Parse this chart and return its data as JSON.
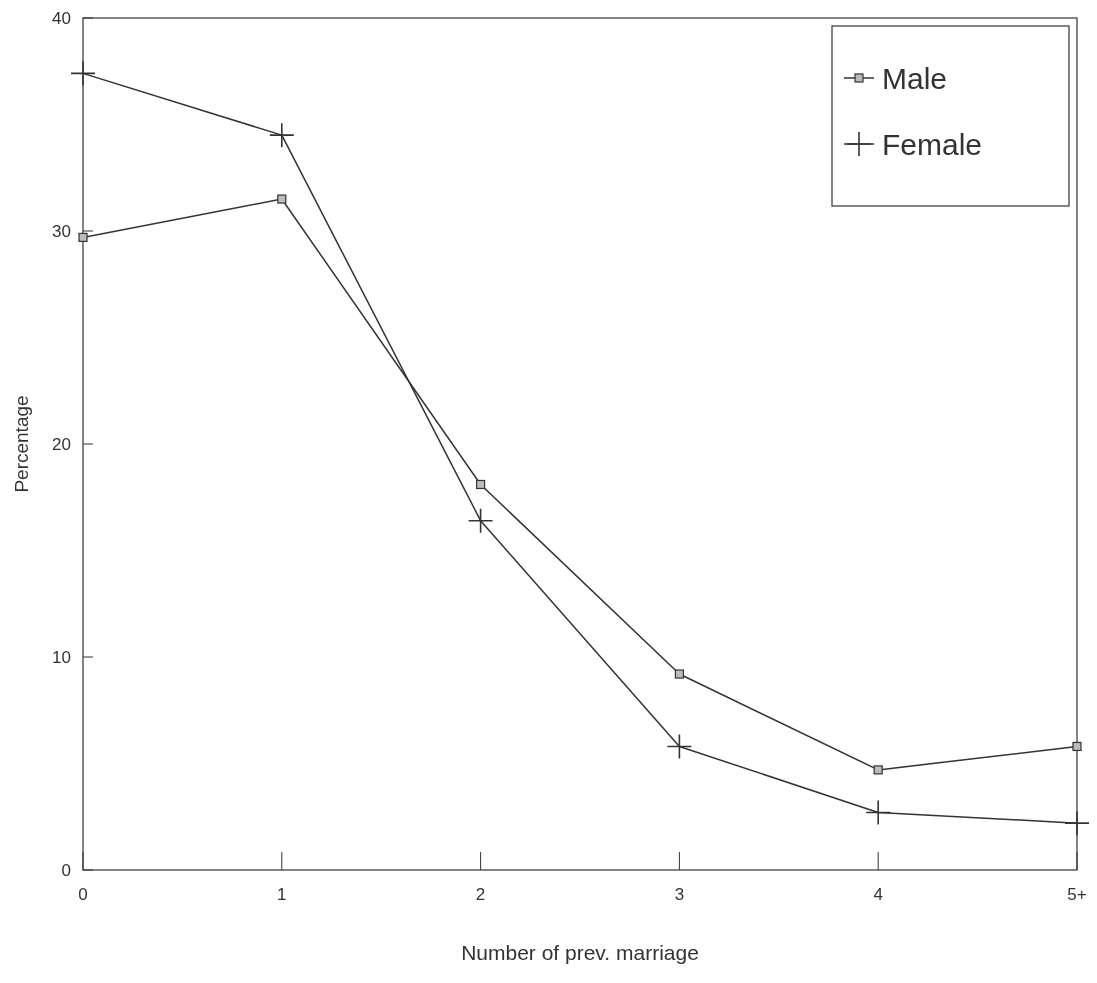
{
  "chart_data": {
    "type": "line",
    "xlabel": "Number of prev. marriage",
    "ylabel": "Percentage",
    "categories": [
      "0",
      "1",
      "2",
      "3",
      "4",
      "5+"
    ],
    "series": [
      {
        "name": "Male",
        "color": "#333333",
        "marker": "square",
        "values": [
          29.7,
          31.5,
          18.1,
          9.2,
          4.7,
          5.8
        ]
      },
      {
        "name": "Female",
        "color": "#333333",
        "marker": "cross",
        "values": [
          37.4,
          34.5,
          16.4,
          5.8,
          2.7,
          2.2
        ]
      }
    ],
    "ylim": [
      0,
      40
    ],
    "yticks": [
      0,
      10,
      20,
      30,
      40
    ],
    "grid": false,
    "legend": "top right",
    "line_style": "solid"
  }
}
